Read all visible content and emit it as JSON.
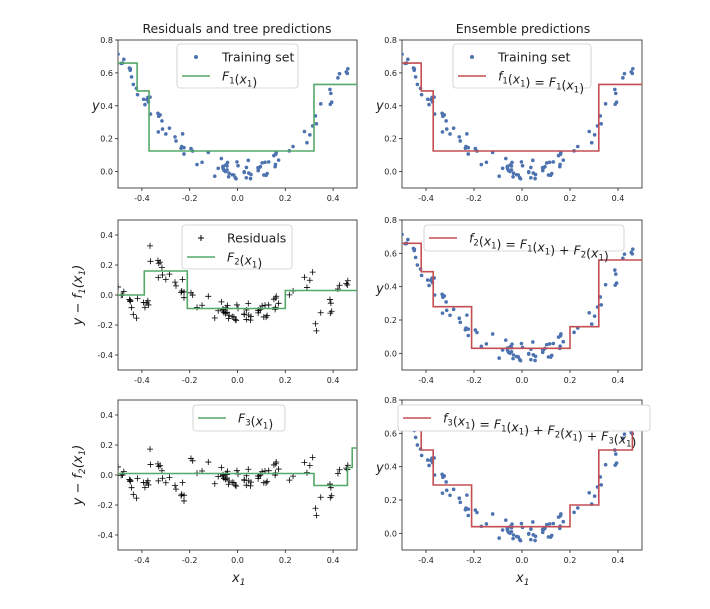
{
  "titles": {
    "left": "Residuals and tree predictions",
    "right": "Ensemble predictions"
  },
  "axis_labels": {
    "y_top": "y",
    "y_mid_left": "y − f1(x1)",
    "y_bot_left": "y − f2(x1)",
    "y_right_mid": "y",
    "y_right_bot": "y",
    "x_bottom": "x1"
  },
  "legends": {
    "p1": [
      "Training set",
      "F1(x1)"
    ],
    "p2": [
      "Training set",
      "f1(x1) = F1(x1)"
    ],
    "p3": [
      "Residuals",
      "F2(x1)"
    ],
    "p4": [
      "f2(x1) = F1(x1) + F2(x1)"
    ],
    "p5": [
      "F3(x1)"
    ],
    "p6": [
      "f3(x1) = F1(x1) + F2(x1) + F3(x1)"
    ]
  },
  "colors": {
    "points": "#4c72b0",
    "green": "#55a868",
    "red": "#c44e52",
    "residual_marker": "#000000"
  },
  "chart_data": [
    {
      "type": "scatter",
      "panel": "top-left",
      "title": "Residuals and tree predictions",
      "xlim": [
        -0.5,
        0.5
      ],
      "ylim": [
        -0.1,
        0.8
      ],
      "xticks": [
        "-0.4",
        "-0.2",
        "0.0",
        "0.2",
        "0.4"
      ],
      "yticks": [
        "0.0",
        "0.2",
        "0.4",
        "0.6",
        "0.8"
      ],
      "series": [
        {
          "name": "Training set",
          "kind": "points"
        },
        {
          "name": "F1(x1)",
          "kind": "step",
          "steps": [
            [
              -0.5,
              0.66
            ],
            [
              -0.42,
              0.49
            ],
            [
              -0.37,
              0.125
            ],
            [
              0.32,
              0.53
            ],
            [
              0.5,
              0.53
            ]
          ]
        }
      ]
    },
    {
      "type": "scatter",
      "panel": "top-right",
      "title": "Ensemble predictions",
      "xlim": [
        -0.5,
        0.5
      ],
      "ylim": [
        -0.1,
        0.8
      ],
      "series": [
        {
          "name": "Training set",
          "kind": "points"
        },
        {
          "name": "f1(x1) = F1(x1)",
          "kind": "step",
          "steps": [
            [
              -0.5,
              0.66
            ],
            [
              -0.42,
              0.49
            ],
            [
              -0.37,
              0.125
            ],
            [
              0.32,
              0.53
            ],
            [
              0.5,
              0.53
            ]
          ]
        }
      ]
    },
    {
      "type": "scatter",
      "panel": "middle-left",
      "xlim": [
        -0.5,
        0.5
      ],
      "ylim": [
        -0.5,
        0.5
      ],
      "yticks": [
        "-0.4",
        "-0.2",
        "0.0",
        "0.2",
        "0.4"
      ],
      "series": [
        {
          "name": "Residuals",
          "kind": "plus"
        },
        {
          "name": "F2(x1)",
          "kind": "step",
          "steps": [
            [
              -0.5,
              0.0
            ],
            [
              -0.39,
              0.16
            ],
            [
              -0.21,
              -0.09
            ],
            [
              0.2,
              0.03
            ],
            [
              0.5,
              0.03
            ]
          ]
        }
      ]
    },
    {
      "type": "scatter",
      "panel": "middle-right",
      "xlim": [
        -0.5,
        0.5
      ],
      "ylim": [
        -0.1,
        0.8
      ],
      "series": [
        {
          "name": "Training set",
          "kind": "points"
        },
        {
          "name": "f2(x1) = F1(x1) + F2(x1)",
          "kind": "step",
          "steps": [
            [
              -0.5,
              0.66
            ],
            [
              -0.42,
              0.49
            ],
            [
              -0.37,
              0.28
            ],
            [
              -0.21,
              0.03
            ],
            [
              0.2,
              0.16
            ],
            [
              0.32,
              0.56
            ],
            [
              0.5,
              0.56
            ]
          ]
        }
      ]
    },
    {
      "type": "scatter",
      "panel": "bottom-left",
      "xlim": [
        -0.5,
        0.5
      ],
      "ylim": [
        -0.5,
        0.5
      ],
      "series": [
        {
          "name": "Residuals",
          "kind": "plus"
        },
        {
          "name": "F3(x1)",
          "kind": "step",
          "steps": [
            [
              -0.5,
              0.01
            ],
            [
              0.32,
              -0.07
            ],
            [
              0.46,
              0.05
            ],
            [
              0.48,
              0.18
            ],
            [
              0.5,
              0.18
            ]
          ]
        }
      ]
    },
    {
      "type": "scatter",
      "panel": "bottom-right",
      "xlim": [
        -0.5,
        0.5
      ],
      "ylim": [
        -0.1,
        0.8
      ],
      "series": [
        {
          "name": "Training set",
          "kind": "points"
        },
        {
          "name": "f3(x1) = F1(x1) + F2(x1) + F3(x1)",
          "kind": "step",
          "steps": [
            [
              -0.5,
              0.67
            ],
            [
              -0.42,
              0.5
            ],
            [
              -0.37,
              0.29
            ],
            [
              -0.21,
              0.04
            ],
            [
              0.2,
              0.17
            ],
            [
              0.32,
              0.5
            ],
            [
              0.46,
              0.74
            ],
            [
              0.5,
              0.74
            ]
          ]
        }
      ]
    }
  ]
}
